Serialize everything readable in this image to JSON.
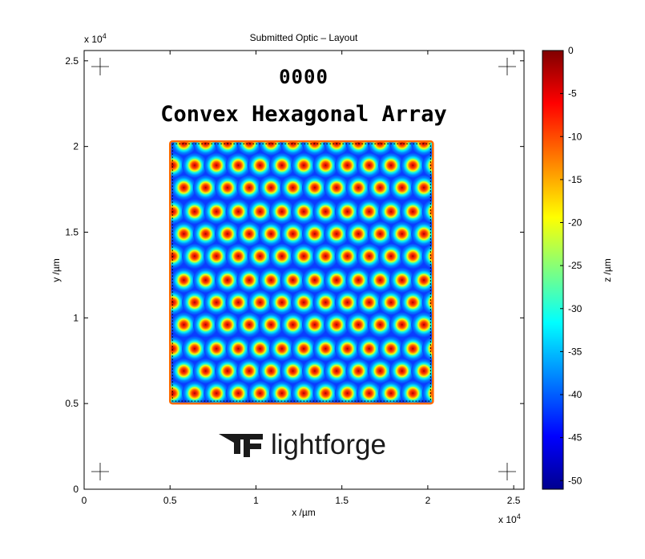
{
  "figure_title": "Submitted Optic – Layout",
  "overlay": {
    "part_number": "0000",
    "caption": "Convex Hexagonal Array",
    "logo_text": "lightforge"
  },
  "chart_data": {
    "type": "heatmap",
    "title": "Submitted Optic – Layout",
    "xlabel": "x /µm",
    "ylabel": "y /µm",
    "x_multiplier": "x 10^4",
    "y_multiplier": "x 10^4",
    "xlim": [
      0,
      25600
    ],
    "ylim": [
      0,
      25600
    ],
    "x_ticks": [
      0,
      5000,
      10000,
      15000,
      20000,
      25000
    ],
    "x_tick_labels": [
      "0",
      "0.5",
      "1",
      "1.5",
      "2",
      "2.5"
    ],
    "y_ticks": [
      0,
      5000,
      10000,
      15000,
      20000,
      25000
    ],
    "y_tick_labels": [
      "0",
      "0.5",
      "1",
      "1.5",
      "2",
      "2.5"
    ],
    "array_extent_x": [
      5000,
      20300
    ],
    "array_extent_y": [
      5000,
      20300
    ],
    "lattice": "hexagonal",
    "lens_shape": "convex",
    "lens_rows": 12,
    "lens_columns": 12,
    "row_y_centers": [
      20200,
      18900,
      17600,
      16200,
      14900,
      13600,
      12200,
      10900,
      9600,
      8200,
      6900,
      5600
    ],
    "row_x_offsets": [
      0,
      630
    ],
    "lens_pitch_x": 1270,
    "first_lens_x": 5800,
    "colorbar": {
      "label": "z /µm",
      "colormap": "jet",
      "range": [
        -51,
        0
      ],
      "ticks": [
        0,
        -5,
        -10,
        -15,
        -20,
        -25,
        -30,
        -35,
        -40,
        -45,
        -50
      ],
      "tick_labels": [
        "0",
        "-5",
        "-10",
        "-15",
        "-20",
        "-25",
        "-30",
        "-35",
        "-40",
        "-45",
        "-50"
      ]
    }
  }
}
